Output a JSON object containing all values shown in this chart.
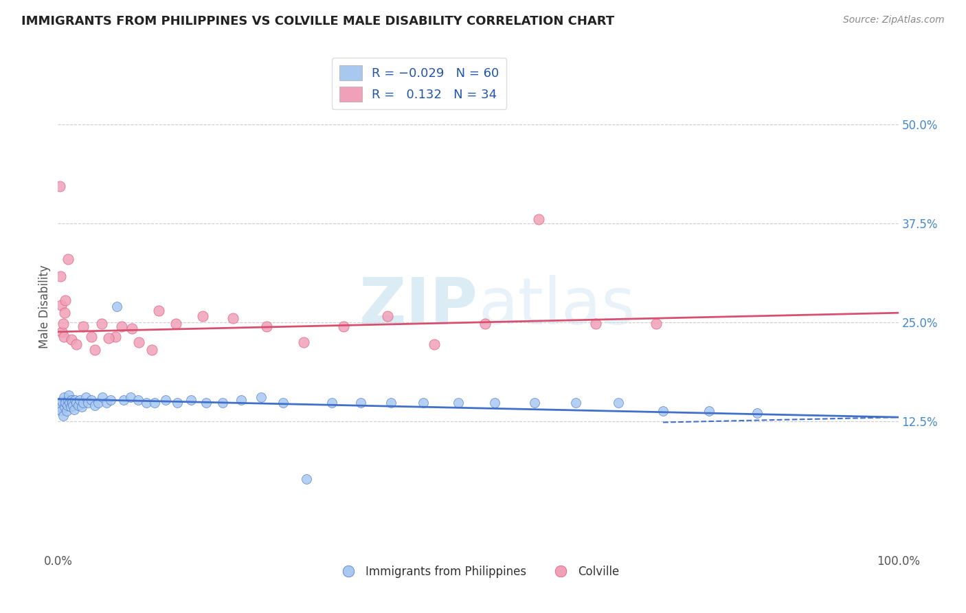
{
  "title": "IMMIGRANTS FROM PHILIPPINES VS COLVILLE MALE DISABILITY CORRELATION CHART",
  "source": "Source: ZipAtlas.com",
  "ylabel": "Male Disability",
  "xlim": [
    0.0,
    1.0
  ],
  "ylim": [
    -0.04,
    0.58
  ],
  "xticks": [
    0.0,
    0.25,
    0.5,
    0.75,
    1.0
  ],
  "xticklabels": [
    "0.0%",
    "",
    "",
    "",
    "100.0%"
  ],
  "ytick_positions": [
    0.125,
    0.25,
    0.375,
    0.5
  ],
  "ytick_labels": [
    "12.5%",
    "25.0%",
    "37.5%",
    "50.0%"
  ],
  "blue_R": -0.029,
  "blue_N": 60,
  "pink_R": 0.132,
  "pink_N": 34,
  "blue_color": "#a8c8f0",
  "pink_color": "#f0a0b8",
  "blue_line_color": "#4070c8",
  "pink_line_color": "#d85070",
  "watermark_color": "#cce4f0",
  "blue_scatter_x": [
    0.001,
    0.002,
    0.003,
    0.004,
    0.005,
    0.006,
    0.007,
    0.008,
    0.009,
    0.01,
    0.011,
    0.012,
    0.013,
    0.014,
    0.015,
    0.016,
    0.017,
    0.018,
    0.019,
    0.02,
    0.022,
    0.024,
    0.026,
    0.028,
    0.03,
    0.033,
    0.036,
    0.04,
    0.044,
    0.048,
    0.053,
    0.058,
    0.063,
    0.07,
    0.078,
    0.086,
    0.095,
    0.105,
    0.115,
    0.128,
    0.142,
    0.158,
    0.176,
    0.196,
    0.218,
    0.242,
    0.268,
    0.296,
    0.326,
    0.36,
    0.396,
    0.435,
    0.476,
    0.52,
    0.567,
    0.616,
    0.667,
    0.72,
    0.775,
    0.832
  ],
  "blue_scatter_y": [
    0.14,
    0.148,
    0.143,
    0.138,
    0.15,
    0.132,
    0.155,
    0.143,
    0.148,
    0.138,
    0.145,
    0.152,
    0.158,
    0.148,
    0.143,
    0.152,
    0.148,
    0.145,
    0.14,
    0.152,
    0.148,
    0.145,
    0.152,
    0.143,
    0.148,
    0.155,
    0.148,
    0.152,
    0.145,
    0.148,
    0.155,
    0.148,
    0.152,
    0.27,
    0.152,
    0.155,
    0.152,
    0.148,
    0.148,
    0.152,
    0.148,
    0.152,
    0.148,
    0.148,
    0.152,
    0.155,
    0.148,
    0.052,
    0.148,
    0.148,
    0.148,
    0.148,
    0.148,
    0.148,
    0.148,
    0.148,
    0.148,
    0.138,
    0.138,
    0.135
  ],
  "pink_scatter_x": [
    0.002,
    0.003,
    0.004,
    0.005,
    0.006,
    0.007,
    0.008,
    0.009,
    0.012,
    0.016,
    0.022,
    0.03,
    0.04,
    0.052,
    0.068,
    0.088,
    0.112,
    0.14,
    0.172,
    0.208,
    0.248,
    0.292,
    0.34,
    0.392,
    0.448,
    0.508,
    0.572,
    0.64,
    0.712,
    0.044,
    0.06,
    0.076,
    0.096,
    0.12
  ],
  "pink_scatter_y": [
    0.422,
    0.308,
    0.272,
    0.238,
    0.248,
    0.232,
    0.262,
    0.278,
    0.33,
    0.228,
    0.222,
    0.245,
    0.232,
    0.248,
    0.232,
    0.242,
    0.215,
    0.248,
    0.258,
    0.255,
    0.245,
    0.225,
    0.245,
    0.258,
    0.222,
    0.248,
    0.38,
    0.248,
    0.248,
    0.215,
    0.23,
    0.245,
    0.225,
    0.265
  ],
  "blue_line_x0": 0.0,
  "blue_line_y0": 0.153,
  "blue_line_x1": 1.0,
  "blue_line_y1": 0.13,
  "pink_line_x0": 0.0,
  "pink_line_y0": 0.238,
  "pink_line_x1": 1.0,
  "pink_line_y1": 0.262
}
